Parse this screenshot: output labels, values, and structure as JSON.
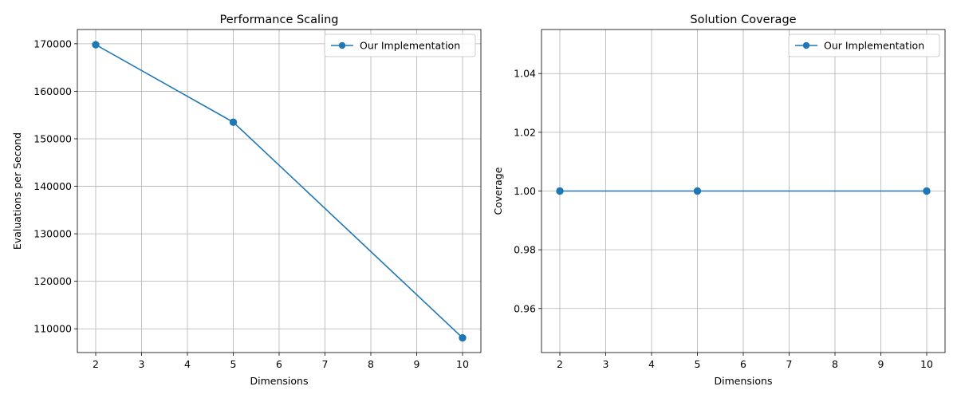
{
  "chart_data": [
    {
      "type": "line",
      "title": "Performance Scaling",
      "xlabel": "Dimensions",
      "ylabel": "Evaluations per Second",
      "x": [
        2,
        5,
        10
      ],
      "series": [
        {
          "name": "Our Implementation",
          "values": [
            169800,
            153500,
            108100
          ],
          "color": "#1f77b4",
          "marker": "circle"
        }
      ],
      "xlim": [
        1.6,
        10.4
      ],
      "ylim": [
        105000,
        173000
      ],
      "xticks": [
        2,
        3,
        4,
        5,
        6,
        7,
        8,
        9,
        10
      ],
      "yticks": [
        110000,
        120000,
        130000,
        140000,
        150000,
        160000,
        170000
      ],
      "ytick_labels": [
        "110000",
        "120000",
        "130000",
        "140000",
        "150000",
        "160000",
        "170000"
      ],
      "grid": true,
      "legend_position": "top-right"
    },
    {
      "type": "line",
      "title": "Solution Coverage",
      "xlabel": "Dimensions",
      "ylabel": "Coverage",
      "x": [
        2,
        5,
        10
      ],
      "series": [
        {
          "name": "Our Implementation",
          "values": [
            1.0,
            1.0,
            1.0
          ],
          "color": "#1f77b4",
          "marker": "circle"
        }
      ],
      "xlim": [
        1.6,
        10.4
      ],
      "ylim": [
        0.945,
        1.055
      ],
      "xticks": [
        2,
        3,
        4,
        5,
        6,
        7,
        8,
        9,
        10
      ],
      "yticks": [
        0.96,
        0.98,
        1.0,
        1.02,
        1.04
      ],
      "ytick_labels": [
        "0.96",
        "0.98",
        "1.00",
        "1.02",
        "1.04"
      ],
      "grid": true,
      "legend_position": "top-right"
    }
  ]
}
